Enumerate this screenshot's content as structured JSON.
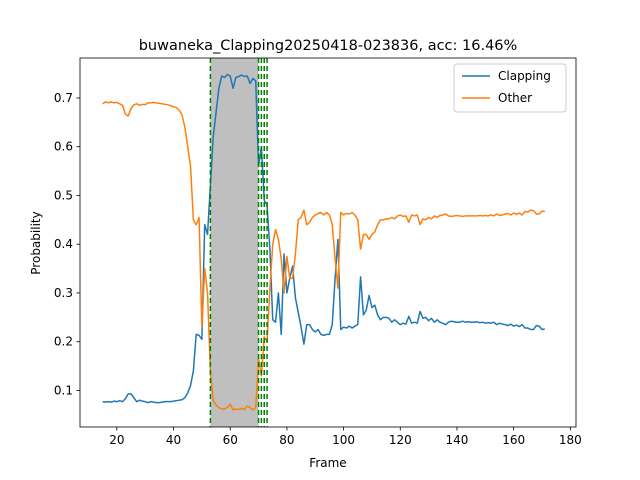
{
  "chart_data": {
    "type": "line",
    "title": "buwaneka_Clapping20250418-023836,  acc: 16.46%",
    "xlabel": "Frame",
    "ylabel": "Probability",
    "xlim": [
      7,
      182
    ],
    "ylim": [
      0.025,
      0.782
    ],
    "xticks": [
      20,
      40,
      60,
      80,
      100,
      120,
      140,
      160,
      180
    ],
    "yticks": [
      0.1,
      0.2,
      0.3,
      0.4,
      0.5,
      0.6,
      0.7
    ],
    "legend_position": "top-right",
    "shaded_region": {
      "x_start": 53,
      "x_end": 70,
      "color": "#bfbfbf"
    },
    "vlines": {
      "x": [
        53,
        70,
        71,
        72,
        73
      ],
      "color": "#008000",
      "style": "dashed"
    },
    "series": [
      {
        "name": "Clapping",
        "color": "#1f77b4",
        "points": [
          [
            15,
            0.077
          ],
          [
            16,
            0.076
          ],
          [
            17,
            0.077
          ],
          [
            18,
            0.076
          ],
          [
            19,
            0.078
          ],
          [
            20,
            0.077
          ],
          [
            21,
            0.079
          ],
          [
            22,
            0.077
          ],
          [
            23,
            0.083
          ],
          [
            24,
            0.093
          ],
          [
            25,
            0.093
          ],
          [
            26,
            0.085
          ],
          [
            27,
            0.077
          ],
          [
            28,
            0.08
          ],
          [
            29,
            0.078
          ],
          [
            30,
            0.077
          ],
          [
            31,
            0.075
          ],
          [
            32,
            0.077
          ],
          [
            33,
            0.076
          ],
          [
            34,
            0.075
          ],
          [
            35,
            0.075
          ],
          [
            36,
            0.076
          ],
          [
            37,
            0.077
          ],
          [
            38,
            0.077
          ],
          [
            39,
            0.077
          ],
          [
            40,
            0.078
          ],
          [
            41,
            0.079
          ],
          [
            42,
            0.08
          ],
          [
            43,
            0.081
          ],
          [
            44,
            0.085
          ],
          [
            45,
            0.095
          ],
          [
            46,
            0.11
          ],
          [
            47,
            0.14
          ],
          [
            48,
            0.215
          ],
          [
            49,
            0.213
          ],
          [
            50,
            0.205
          ],
          [
            51,
            0.44
          ],
          [
            52,
            0.42
          ],
          [
            53,
            0.52
          ],
          [
            54,
            0.62
          ],
          [
            55,
            0.67
          ],
          [
            56,
            0.72
          ],
          [
            57,
            0.745
          ],
          [
            58,
            0.742
          ],
          [
            59,
            0.748
          ],
          [
            60,
            0.745
          ],
          [
            61,
            0.72
          ],
          [
            62,
            0.742
          ],
          [
            63,
            0.744
          ],
          [
            64,
            0.747
          ],
          [
            65,
            0.744
          ],
          [
            66,
            0.745
          ],
          [
            67,
            0.73
          ],
          [
            68,
            0.74
          ],
          [
            69,
            0.735
          ],
          [
            70,
            0.56
          ],
          [
            71,
            0.6
          ],
          [
            72,
            0.49
          ],
          [
            73,
            0.48
          ],
          [
            74,
            0.39
          ],
          [
            75,
            0.245
          ],
          [
            76,
            0.24
          ],
          [
            77,
            0.3
          ],
          [
            78,
            0.215
          ],
          [
            79,
            0.38
          ],
          [
            80,
            0.3
          ],
          [
            81,
            0.33
          ],
          [
            82,
            0.355
          ],
          [
            83,
            0.29
          ],
          [
            84,
            0.26
          ],
          [
            85,
            0.23
          ],
          [
            86,
            0.195
          ],
          [
            87,
            0.235
          ],
          [
            88,
            0.235
          ],
          [
            89,
            0.225
          ],
          [
            90,
            0.22
          ],
          [
            91,
            0.225
          ],
          [
            92,
            0.215
          ],
          [
            93,
            0.213
          ],
          [
            94,
            0.215
          ],
          [
            95,
            0.215
          ],
          [
            96,
            0.235
          ],
          [
            97,
            0.33
          ],
          [
            98,
            0.41
          ],
          [
            99,
            0.225
          ],
          [
            100,
            0.23
          ],
          [
            101,
            0.228
          ],
          [
            102,
            0.232
          ],
          [
            103,
            0.228
          ],
          [
            104,
            0.232
          ],
          [
            105,
            0.235
          ],
          [
            106,
            0.333
          ],
          [
            107,
            0.255
          ],
          [
            108,
            0.265
          ],
          [
            109,
            0.295
          ],
          [
            110,
            0.27
          ],
          [
            111,
            0.275
          ],
          [
            112,
            0.255
          ],
          [
            113,
            0.245
          ],
          [
            114,
            0.25
          ],
          [
            115,
            0.25
          ],
          [
            116,
            0.248
          ],
          [
            117,
            0.24
          ],
          [
            118,
            0.245
          ],
          [
            119,
            0.24
          ],
          [
            120,
            0.235
          ],
          [
            121,
            0.238
          ],
          [
            122,
            0.236
          ],
          [
            123,
            0.252
          ],
          [
            124,
            0.238
          ],
          [
            125,
            0.24
          ],
          [
            126,
            0.238
          ],
          [
            127,
            0.262
          ],
          [
            128,
            0.248
          ],
          [
            129,
            0.25
          ],
          [
            130,
            0.243
          ],
          [
            131,
            0.248
          ],
          [
            132,
            0.24
          ],
          [
            133,
            0.245
          ],
          [
            134,
            0.24
          ],
          [
            135,
            0.238
          ],
          [
            136,
            0.235
          ],
          [
            137,
            0.24
          ],
          [
            138,
            0.242
          ],
          [
            139,
            0.241
          ],
          [
            140,
            0.24
          ],
          [
            141,
            0.24
          ],
          [
            142,
            0.242
          ],
          [
            143,
            0.24
          ],
          [
            144,
            0.241
          ],
          [
            145,
            0.24
          ],
          [
            146,
            0.24
          ],
          [
            147,
            0.241
          ],
          [
            148,
            0.239
          ],
          [
            149,
            0.24
          ],
          [
            150,
            0.238
          ],
          [
            151,
            0.239
          ],
          [
            152,
            0.238
          ],
          [
            153,
            0.24
          ],
          [
            154,
            0.235
          ],
          [
            155,
            0.238
          ],
          [
            156,
            0.236
          ],
          [
            157,
            0.235
          ],
          [
            158,
            0.233
          ],
          [
            159,
            0.236
          ],
          [
            160,
            0.232
          ],
          [
            161,
            0.234
          ],
          [
            162,
            0.231
          ],
          [
            163,
            0.235
          ],
          [
            164,
            0.228
          ],
          [
            165,
            0.228
          ],
          [
            166,
            0.225
          ],
          [
            167,
            0.225
          ],
          [
            168,
            0.233
          ],
          [
            169,
            0.232
          ],
          [
            170,
            0.225
          ],
          [
            171,
            0.226
          ]
        ]
      },
      {
        "name": "Other",
        "color": "#ff7f0e",
        "points": [
          [
            15,
            0.688
          ],
          [
            16,
            0.692
          ],
          [
            17,
            0.69
          ],
          [
            18,
            0.692
          ],
          [
            19,
            0.69
          ],
          [
            20,
            0.691
          ],
          [
            21,
            0.688
          ],
          [
            22,
            0.685
          ],
          [
            23,
            0.667
          ],
          [
            24,
            0.663
          ],
          [
            25,
            0.678
          ],
          [
            26,
            0.686
          ],
          [
            27,
            0.688
          ],
          [
            28,
            0.685
          ],
          [
            29,
            0.687
          ],
          [
            30,
            0.686
          ],
          [
            31,
            0.69
          ],
          [
            32,
            0.69
          ],
          [
            33,
            0.691
          ],
          [
            34,
            0.69
          ],
          [
            35,
            0.689
          ],
          [
            36,
            0.688
          ],
          [
            37,
            0.687
          ],
          [
            38,
            0.686
          ],
          [
            39,
            0.684
          ],
          [
            40,
            0.682
          ],
          [
            41,
            0.68
          ],
          [
            42,
            0.675
          ],
          [
            43,
            0.665
          ],
          [
            44,
            0.64
          ],
          [
            45,
            0.6
          ],
          [
            46,
            0.56
          ],
          [
            47,
            0.45
          ],
          [
            48,
            0.44
          ],
          [
            49,
            0.455
          ],
          [
            50,
            0.23
          ],
          [
            51,
            0.35
          ],
          [
            52,
            0.3
          ],
          [
            53,
            0.14
          ],
          [
            54,
            0.08
          ],
          [
            55,
            0.07
          ],
          [
            56,
            0.065
          ],
          [
            57,
            0.062
          ],
          [
            58,
            0.062
          ],
          [
            59,
            0.065
          ],
          [
            60,
            0.072
          ],
          [
            61,
            0.06
          ],
          [
            62,
            0.062
          ],
          [
            63,
            0.061
          ],
          [
            64,
            0.063
          ],
          [
            65,
            0.061
          ],
          [
            66,
            0.068
          ],
          [
            67,
            0.065
          ],
          [
            68,
            0.06
          ],
          [
            69,
            0.065
          ],
          [
            70,
            0.165
          ],
          [
            71,
            0.13
          ],
          [
            72,
            0.21
          ],
          [
            73,
            0.2
          ],
          [
            74,
            0.31
          ],
          [
            75,
            0.4
          ],
          [
            76,
            0.43
          ],
          [
            77,
            0.41
          ],
          [
            78,
            0.37
          ],
          [
            79,
            0.3
          ],
          [
            80,
            0.375
          ],
          [
            81,
            0.33
          ],
          [
            82,
            0.33
          ],
          [
            83,
            0.38
          ],
          [
            84,
            0.45
          ],
          [
            85,
            0.455
          ],
          [
            86,
            0.47
          ],
          [
            87,
            0.44
          ],
          [
            88,
            0.445
          ],
          [
            89,
            0.455
          ],
          [
            90,
            0.46
          ],
          [
            91,
            0.463
          ],
          [
            92,
            0.465
          ],
          [
            93,
            0.46
          ],
          [
            94,
            0.465
          ],
          [
            95,
            0.46
          ],
          [
            96,
            0.44
          ],
          [
            97,
            0.37
          ],
          [
            98,
            0.31
          ],
          [
            99,
            0.465
          ],
          [
            100,
            0.46
          ],
          [
            101,
            0.463
          ],
          [
            102,
            0.462
          ],
          [
            103,
            0.465
          ],
          [
            104,
            0.46
          ],
          [
            105,
            0.45
          ],
          [
            106,
            0.39
          ],
          [
            107,
            0.42
          ],
          [
            108,
            0.42
          ],
          [
            109,
            0.41
          ],
          [
            110,
            0.42
          ],
          [
            111,
            0.425
          ],
          [
            112,
            0.44
          ],
          [
            113,
            0.45
          ],
          [
            114,
            0.45
          ],
          [
            115,
            0.452
          ],
          [
            116,
            0.452
          ],
          [
            117,
            0.455
          ],
          [
            118,
            0.452
          ],
          [
            119,
            0.458
          ],
          [
            120,
            0.46
          ],
          [
            121,
            0.457
          ],
          [
            122,
            0.458
          ],
          [
            123,
            0.445
          ],
          [
            124,
            0.46
          ],
          [
            125,
            0.458
          ],
          [
            126,
            0.46
          ],
          [
            127,
            0.44
          ],
          [
            128,
            0.452
          ],
          [
            129,
            0.45
          ],
          [
            130,
            0.455
          ],
          [
            131,
            0.452
          ],
          [
            132,
            0.458
          ],
          [
            133,
            0.455
          ],
          [
            134,
            0.459
          ],
          [
            135,
            0.46
          ],
          [
            136,
            0.462
          ],
          [
            137,
            0.458
          ],
          [
            138,
            0.457
          ],
          [
            139,
            0.458
          ],
          [
            140,
            0.459
          ],
          [
            141,
            0.458
          ],
          [
            142,
            0.457
          ],
          [
            143,
            0.458
          ],
          [
            144,
            0.458
          ],
          [
            145,
            0.458
          ],
          [
            146,
            0.458
          ],
          [
            147,
            0.458
          ],
          [
            148,
            0.459
          ],
          [
            149,
            0.458
          ],
          [
            150,
            0.459
          ],
          [
            151,
            0.458
          ],
          [
            152,
            0.46
          ],
          [
            153,
            0.458
          ],
          [
            154,
            0.462
          ],
          [
            155,
            0.459
          ],
          [
            156,
            0.46
          ],
          [
            157,
            0.462
          ],
          [
            158,
            0.463
          ],
          [
            159,
            0.46
          ],
          [
            160,
            0.464
          ],
          [
            161,
            0.461
          ],
          [
            162,
            0.464
          ],
          [
            163,
            0.46
          ],
          [
            164,
            0.467
          ],
          [
            165,
            0.466
          ],
          [
            166,
            0.47
          ],
          [
            167,
            0.469
          ],
          [
            168,
            0.462
          ],
          [
            169,
            0.462
          ],
          [
            170,
            0.468
          ],
          [
            171,
            0.467
          ]
        ]
      }
    ]
  }
}
